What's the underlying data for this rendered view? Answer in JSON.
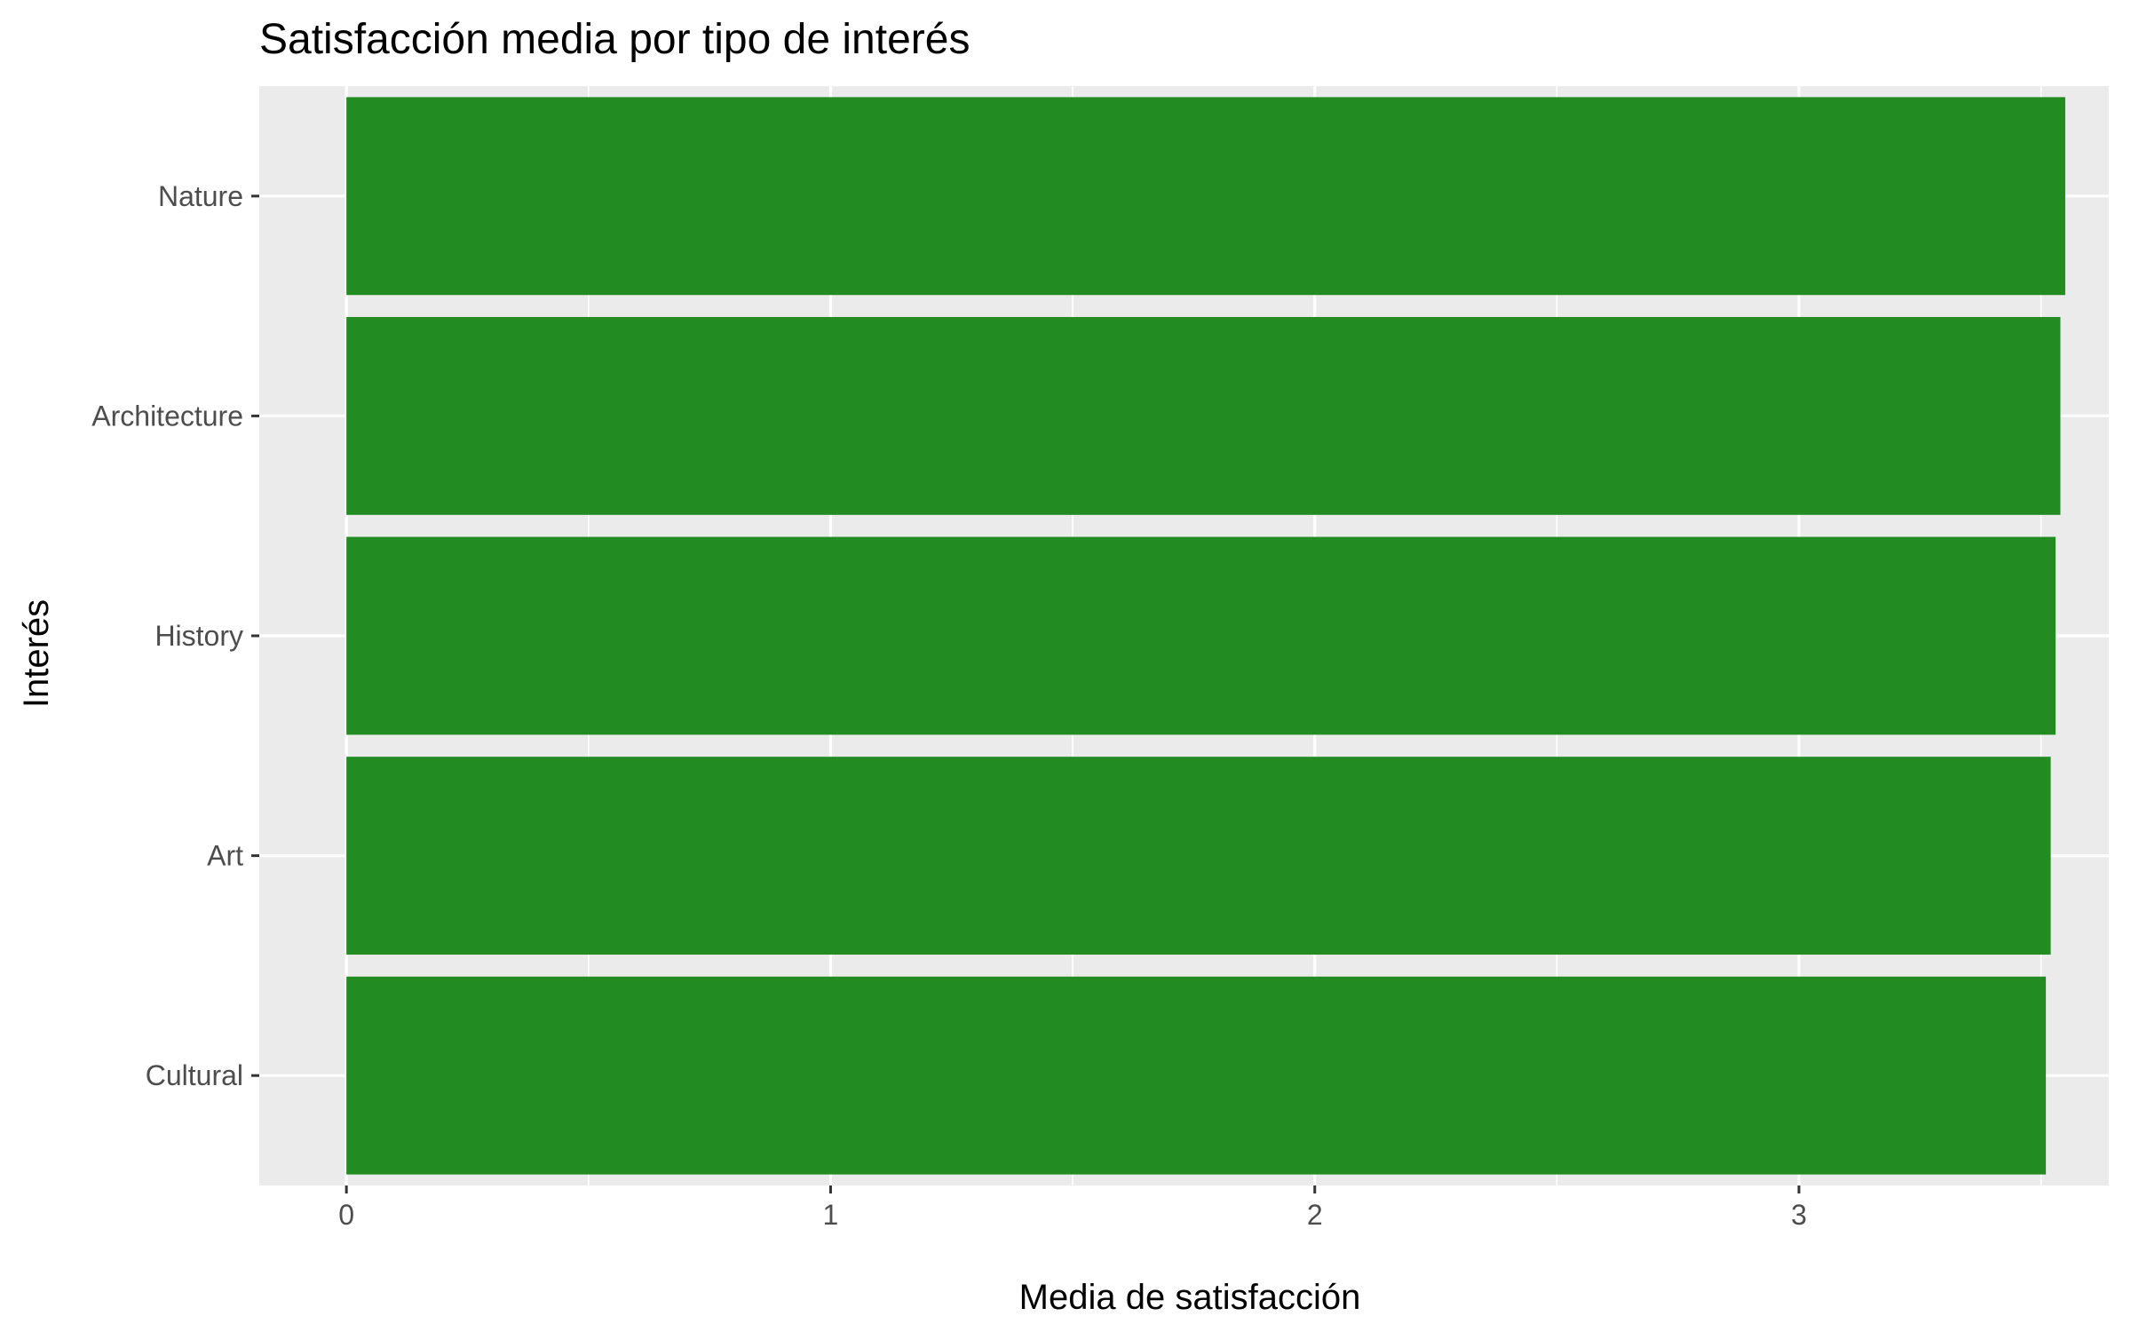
{
  "chart_data": {
    "type": "bar",
    "orientation": "horizontal",
    "title": "Satisfacción media por tipo de interés",
    "xlabel": "Media de satisfacción",
    "ylabel": "Interés",
    "categories": [
      "Nature",
      "Architecture",
      "History",
      "Art",
      "Cultural"
    ],
    "values": [
      3.55,
      3.54,
      3.53,
      3.52,
      3.51
    ],
    "xlim": [
      -0.18,
      3.64
    ],
    "xticks": [
      0,
      1,
      2,
      3
    ],
    "xminor": [
      0.5,
      1.5,
      2.5,
      3.5
    ],
    "grid": true,
    "legend": "none",
    "colors": {
      "bar": "#228B22",
      "panel": "#EBEBEB",
      "grid": "#FFFFFF",
      "tick_text": "#4D4D4D",
      "tick_mark": "#333333"
    }
  }
}
